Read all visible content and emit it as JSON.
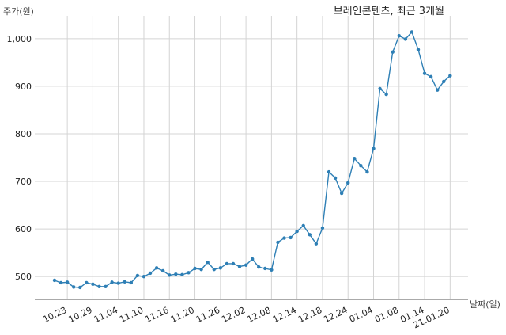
{
  "chart_data": {
    "type": "line",
    "title": "브레인콘텐츠, 최근 3개월",
    "ylabel": "주가(원)",
    "xlabel": "날짜(일)",
    "ylim": [
      452,
      1048
    ],
    "yticks": [
      500,
      600,
      700,
      800,
      900,
      1000
    ],
    "ytick_labels": [
      "500",
      "600",
      "700",
      "800",
      "900",
      "1,000"
    ],
    "xtick_labels": [
      "10.23",
      "10.29",
      "11.04",
      "11.10",
      "11.16",
      "11.20",
      "11.26",
      "12.02",
      "12.08",
      "12.14",
      "12.18",
      "12.24",
      "01.04",
      "01.08",
      "01.14",
      "21.01.20"
    ],
    "xtick_index": [
      2,
      6,
      10,
      14,
      18,
      22,
      26,
      30,
      34,
      38,
      42,
      46,
      50,
      54,
      58,
      62
    ],
    "grid": true,
    "colors": {
      "series": "#2e7fb5",
      "grid": "#d4d4d4",
      "axis": "#555555"
    },
    "series": [
      {
        "values": [
          492,
          487,
          488,
          478,
          477,
          487,
          484,
          479,
          479,
          488,
          486,
          489,
          487,
          502,
          500,
          507,
          518,
          512,
          503,
          505,
          504,
          508,
          517,
          515,
          530,
          515,
          518,
          527,
          527,
          521,
          524,
          537,
          520,
          517,
          514,
          572,
          581,
          582,
          595,
          607,
          588,
          569,
          602,
          720,
          707,
          675,
          697,
          748,
          733,
          720,
          769,
          895,
          883,
          972,
          1006,
          999,
          1014,
          977,
          927,
          920,
          892,
          910,
          922
        ]
      }
    ]
  }
}
